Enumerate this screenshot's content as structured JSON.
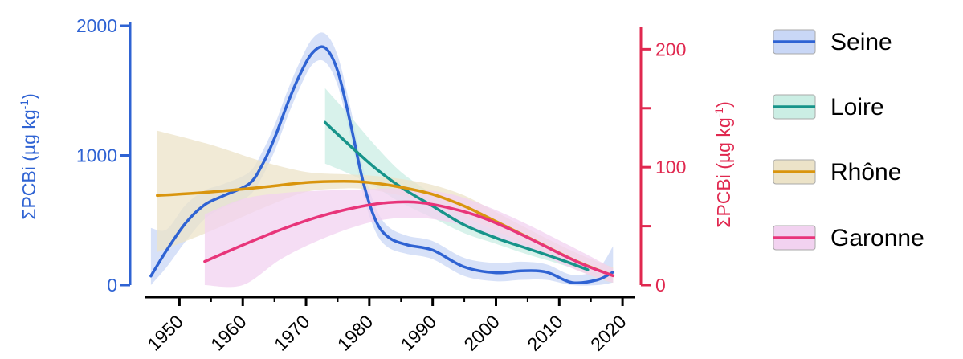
{
  "chart_data": {
    "type": "line",
    "title": "",
    "xlabel": "",
    "xlim": [
      1945,
      2021
    ],
    "x_ticks": [
      "1950",
      "1960",
      "1970",
      "1980",
      "1990",
      "2000",
      "2010",
      "2020"
    ],
    "y_left": {
      "label": "ΣPCBi (µg kg",
      "label_sup": "-1",
      "label_end": ")",
      "range": [
        0,
        2000
      ],
      "ticks": [
        "0",
        "1000",
        "2000"
      ],
      "color": "#2f63d3"
    },
    "y_right": {
      "label": "ΣPCBi (µg kg",
      "label_sup": "-1",
      "label_end": ")",
      "range": [
        0,
        220
      ],
      "ticks": [
        "0",
        "100",
        "200"
      ],
      "color": "#e0284f"
    },
    "legend_position": "right",
    "series": [
      {
        "name": "Seine",
        "axis": "left",
        "color": "#2f63d3",
        "band_color": "#c9d7f6",
        "x": [
          1945.5,
          1948,
          1951,
          1954,
          1957,
          1961,
          1963,
          1965,
          1967,
          1969,
          1971,
          1973,
          1975,
          1977,
          1979,
          1981,
          1983,
          1986,
          1990,
          1995,
          2000,
          2004,
          2008,
          2012,
          2016,
          2018.5
        ],
        "y": [
          70,
          270,
          480,
          620,
          690,
          780,
          920,
          1130,
          1390,
          1620,
          1790,
          1830,
          1650,
          1250,
          800,
          500,
          370,
          310,
          270,
          140,
          95,
          110,
          100,
          20,
          40,
          100
        ],
        "lower": [
          0,
          140,
          340,
          510,
          600,
          690,
          830,
          1030,
          1290,
          1520,
          1700,
          1720,
          1540,
          1140,
          700,
          410,
          290,
          240,
          200,
          70,
          30,
          40,
          40,
          0,
          0,
          20
        ],
        "upper": [
          440,
          430,
          620,
          730,
          780,
          870,
          1020,
          1230,
          1490,
          1720,
          1900,
          1940,
          1770,
          1370,
          910,
          600,
          450,
          380,
          340,
          210,
          170,
          180,
          160,
          80,
          120,
          300
        ]
      },
      {
        "name": "Loire",
        "axis": "right",
        "color": "#17948a",
        "band_color": "#cbeee4",
        "x": [
          1973,
          1977,
          1981,
          1985,
          1990,
          1995,
          2000,
          2005,
          2010,
          2014.5
        ],
        "y": [
          138,
          118,
          99,
          83,
          67,
          51,
          40,
          31,
          22,
          13
        ],
        "lower": [
          103,
          94,
          83,
          70,
          57,
          44,
          35,
          26,
          18,
          10
        ],
        "upper": [
          167,
          143,
          118,
          96,
          77,
          59,
          46,
          36,
          27,
          17
        ]
      },
      {
        "name": "Rhône",
        "axis": "right",
        "color": "#d9950e",
        "band_color": "#ece3c8",
        "x": [
          1946.5,
          1955,
          1963,
          1970,
          1976,
          1980,
          1985,
          1990,
          1995,
          2000,
          2006,
          2012,
          2016,
          2018.5
        ],
        "y": [
          76,
          79,
          83,
          87,
          88,
          87,
          83,
          77,
          67,
          54,
          38,
          22,
          13,
          8
        ],
        "lower": [
          28,
          46,
          65,
          79,
          82,
          81,
          76,
          69,
          58,
          46,
          31,
          15,
          6,
          2
        ],
        "upper": [
          131,
          119,
          105,
          96,
          94,
          93,
          90,
          85,
          76,
          62,
          45,
          29,
          20,
          15
        ]
      },
      {
        "name": "Garonne",
        "axis": "right",
        "color": "#e8357a",
        "band_color": "#f2d2f0",
        "x": [
          1954,
          1960,
          1966,
          1972,
          1978,
          1983,
          1988,
          1993,
          1998,
          2004,
          2010,
          2014,
          2018.5
        ],
        "y": [
          20,
          34,
          47,
          58,
          66,
          70,
          70,
          65,
          57,
          43,
          27,
          17,
          8
        ],
        "lower": [
          0,
          0,
          22,
          38,
          50,
          56,
          57,
          53,
          45,
          33,
          19,
          10,
          2
        ],
        "upper": [
          60,
          73,
          78,
          80,
          81,
          82,
          81,
          77,
          68,
          54,
          38,
          27,
          14
        ]
      }
    ]
  }
}
